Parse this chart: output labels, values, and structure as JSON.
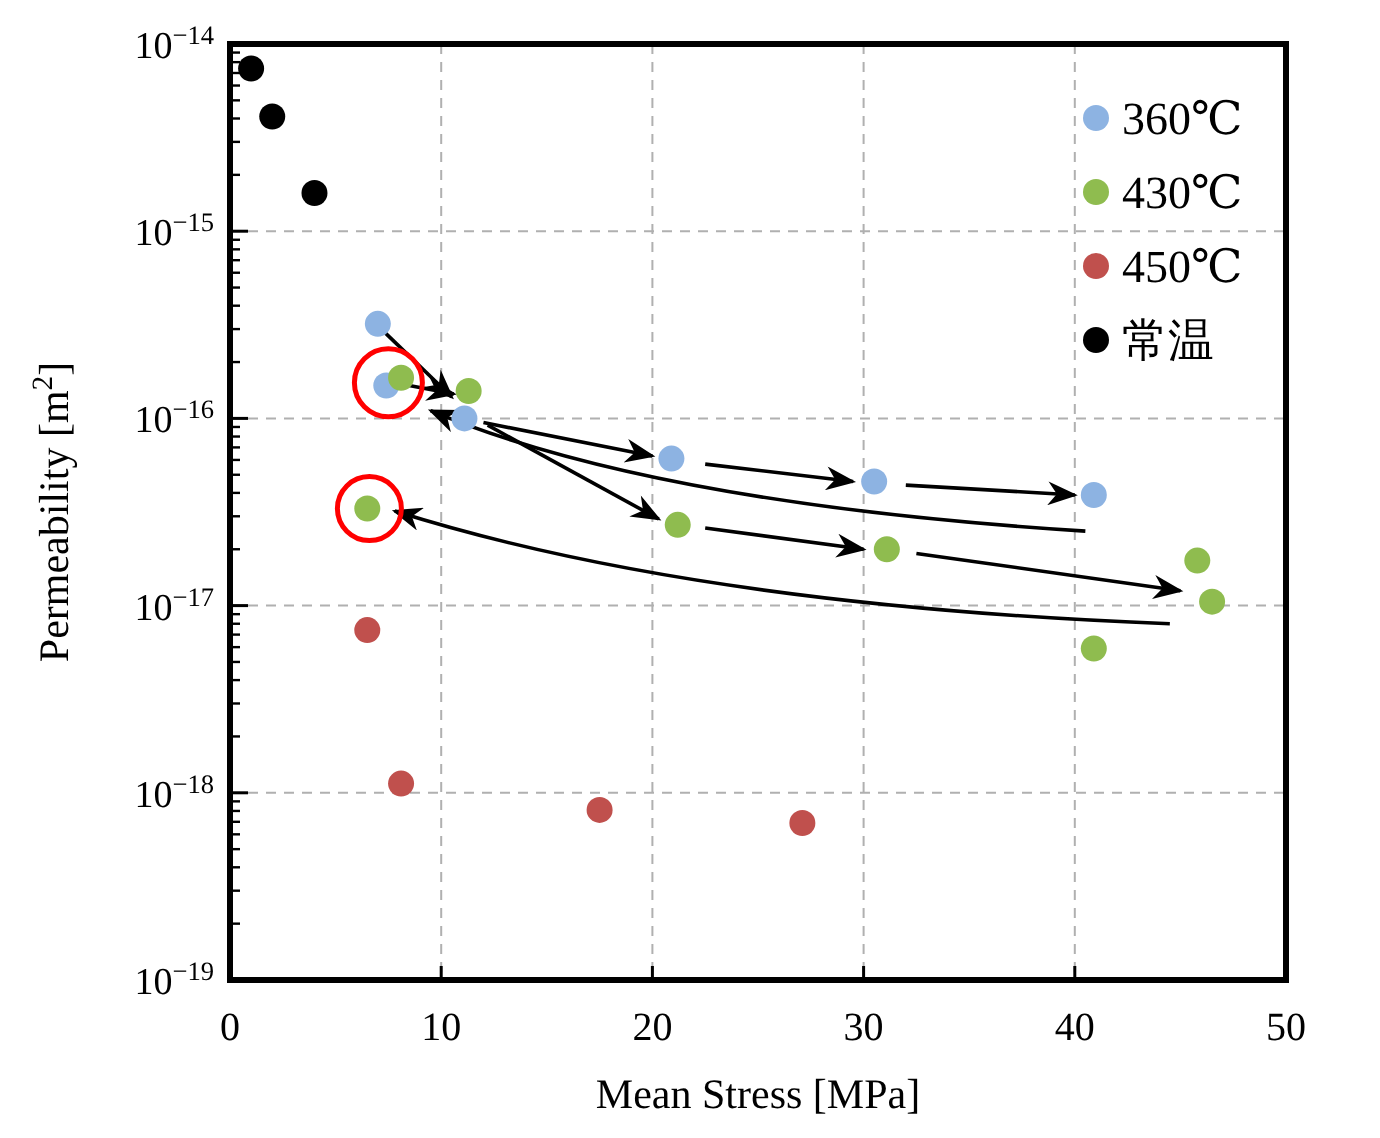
{
  "chart_data": {
    "type": "scatter",
    "xlabel": "Mean Stress [MPa]",
    "ylabel": "Permeability [m$^{2}$]",
    "log": "y",
    "xlim": [
      0,
      50
    ],
    "xticks": [
      0,
      10,
      20,
      30,
      40,
      50
    ],
    "ylim": [
      1e-19,
      1e-14
    ],
    "yticks": [
      {
        "value": 1e-19,
        "label": "10$^{−19}$"
      },
      {
        "value": 1e-18,
        "label": "10$^{−18}$"
      },
      {
        "value": 1e-17,
        "label": "10$^{−17}$"
      },
      {
        "value": 1e-16,
        "label": "10$^{−16}$"
      },
      {
        "value": 1e-15,
        "label": "10$^{−15}$"
      },
      {
        "value": 1e-14,
        "label": "10$^{−14}$"
      }
    ],
    "grid": true,
    "legend": "top right",
    "marker": "circle",
    "series": [
      {
        "name": "360℃",
        "color": "#8db3e2",
        "x": [
          7.0,
          7.4,
          11.1,
          20.9,
          30.5,
          40.9
        ],
        "values": [
          3.2e-16,
          1.5e-16,
          1e-16,
          6.1e-17,
          4.6e-17,
          3.9e-17
        ]
      },
      {
        "name": "430℃",
        "color": "#8fbc4f",
        "x": [
          8.1,
          11.3,
          6.5,
          21.2,
          31.1,
          45.8,
          46.5,
          40.9
        ],
        "values": [
          1.65e-16,
          1.4e-16,
          3.3e-17,
          2.7e-17,
          2e-17,
          1.74e-17,
          1.05e-17,
          5.9e-18
        ]
      },
      {
        "name": "450℃",
        "color": "#c0504d",
        "x": [
          6.5,
          8.1,
          17.5,
          27.1
        ],
        "values": [
          7.4e-18,
          1.12e-18,
          8.1e-19,
          6.9e-19
        ]
      },
      {
        "name": "常温",
        "color": "#000000",
        "x": [
          1,
          2,
          4
        ],
        "values": [
          7.4e-15,
          4.1e-15,
          1.6e-15
        ]
      }
    ]
  }
}
